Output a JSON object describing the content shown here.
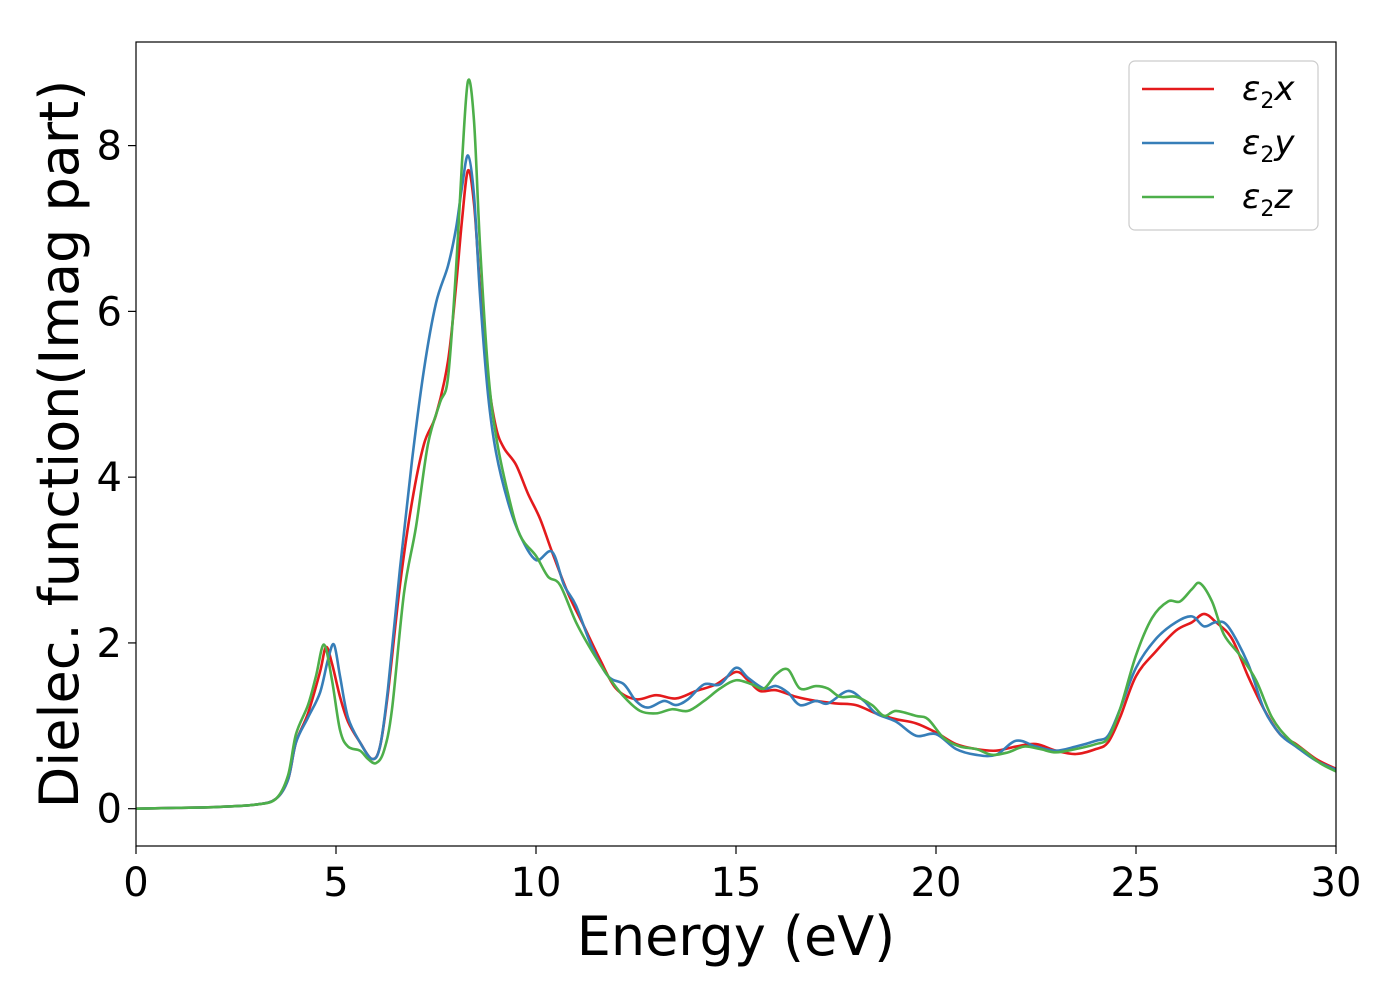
{
  "chart_data": {
    "type": "line",
    "xlabel": "Energy (eV)",
    "ylabel": "Dielec. function(Imag part)",
    "xlim": [
      0,
      30
    ],
    "ylim": [
      -0.45,
      9.25
    ],
    "xticks": [
      0,
      5,
      10,
      15,
      20,
      25,
      30
    ],
    "yticks": [
      0,
      2,
      4,
      6,
      8
    ],
    "grid": false,
    "legend_position": "top-right",
    "colors": {
      "x": "#e41a1c",
      "y": "#377eb8",
      "z": "#4daf4a"
    },
    "series": [
      {
        "name": "ε2x",
        "legend_symbol": "ε",
        "legend_sub": "2",
        "legend_suffix": "x",
        "color": "#e41a1c",
        "points": [
          [
            0,
            0
          ],
          [
            1,
            0.01
          ],
          [
            2,
            0.02
          ],
          [
            3,
            0.05
          ],
          [
            3.5,
            0.12
          ],
          [
            3.8,
            0.35
          ],
          [
            4.0,
            0.8
          ],
          [
            4.3,
            1.15
          ],
          [
            4.6,
            1.65
          ],
          [
            4.75,
            1.95
          ],
          [
            4.9,
            1.75
          ],
          [
            5.1,
            1.35
          ],
          [
            5.3,
            1.05
          ],
          [
            5.6,
            0.8
          ],
          [
            5.9,
            0.6
          ],
          [
            6.1,
            0.75
          ],
          [
            6.3,
            1.4
          ],
          [
            6.6,
            2.7
          ],
          [
            6.9,
            3.7
          ],
          [
            7.2,
            4.4
          ],
          [
            7.5,
            4.75
          ],
          [
            7.8,
            5.4
          ],
          [
            8.0,
            6.3
          ],
          [
            8.15,
            7.1
          ],
          [
            8.3,
            7.7
          ],
          [
            8.45,
            7.3
          ],
          [
            8.6,
            6.3
          ],
          [
            8.8,
            5.2
          ],
          [
            9.0,
            4.6
          ],
          [
            9.2,
            4.35
          ],
          [
            9.5,
            4.15
          ],
          [
            9.8,
            3.8
          ],
          [
            10.1,
            3.5
          ],
          [
            10.4,
            3.1
          ],
          [
            10.8,
            2.6
          ],
          [
            11.2,
            2.2
          ],
          [
            11.6,
            1.8
          ],
          [
            12.0,
            1.45
          ],
          [
            12.5,
            1.32
          ],
          [
            13.0,
            1.37
          ],
          [
            13.5,
            1.33
          ],
          [
            14.0,
            1.42
          ],
          [
            14.5,
            1.5
          ],
          [
            15.0,
            1.65
          ],
          [
            15.3,
            1.55
          ],
          [
            15.6,
            1.42
          ],
          [
            16.0,
            1.43
          ],
          [
            16.5,
            1.35
          ],
          [
            17.0,
            1.3
          ],
          [
            17.5,
            1.27
          ],
          [
            18.0,
            1.25
          ],
          [
            18.5,
            1.15
          ],
          [
            19.0,
            1.08
          ],
          [
            19.5,
            1.03
          ],
          [
            20.0,
            0.92
          ],
          [
            20.5,
            0.78
          ],
          [
            21.0,
            0.72
          ],
          [
            21.5,
            0.7
          ],
          [
            22.0,
            0.75
          ],
          [
            22.5,
            0.78
          ],
          [
            23.0,
            0.7
          ],
          [
            23.5,
            0.66
          ],
          [
            24.0,
            0.72
          ],
          [
            24.3,
            0.8
          ],
          [
            24.6,
            1.1
          ],
          [
            25.0,
            1.6
          ],
          [
            25.5,
            1.9
          ],
          [
            26.0,
            2.15
          ],
          [
            26.4,
            2.25
          ],
          [
            26.7,
            2.35
          ],
          [
            27.0,
            2.25
          ],
          [
            27.4,
            2.05
          ],
          [
            27.8,
            1.6
          ],
          [
            28.2,
            1.2
          ],
          [
            28.6,
            0.9
          ],
          [
            29.0,
            0.78
          ],
          [
            29.5,
            0.6
          ],
          [
            30.0,
            0.48
          ]
        ]
      },
      {
        "name": "ε2y",
        "legend_symbol": "ε",
        "legend_sub": "2",
        "legend_suffix": "y",
        "color": "#377eb8",
        "points": [
          [
            0,
            0
          ],
          [
            1,
            0.01
          ],
          [
            2,
            0.02
          ],
          [
            3,
            0.05
          ],
          [
            3.5,
            0.12
          ],
          [
            3.8,
            0.35
          ],
          [
            4.0,
            0.8
          ],
          [
            4.3,
            1.1
          ],
          [
            4.6,
            1.4
          ],
          [
            4.8,
            1.8
          ],
          [
            4.95,
            1.98
          ],
          [
            5.1,
            1.6
          ],
          [
            5.3,
            1.1
          ],
          [
            5.6,
            0.8
          ],
          [
            5.9,
            0.6
          ],
          [
            6.1,
            0.75
          ],
          [
            6.3,
            1.45
          ],
          [
            6.6,
            2.9
          ],
          [
            6.9,
            4.2
          ],
          [
            7.2,
            5.3
          ],
          [
            7.5,
            6.1
          ],
          [
            7.8,
            6.55
          ],
          [
            8.0,
            7.0
          ],
          [
            8.15,
            7.5
          ],
          [
            8.3,
            7.88
          ],
          [
            8.45,
            7.4
          ],
          [
            8.6,
            6.2
          ],
          [
            8.8,
            5.0
          ],
          [
            9.0,
            4.3
          ],
          [
            9.3,
            3.7
          ],
          [
            9.6,
            3.3
          ],
          [
            10.0,
            3.0
          ],
          [
            10.4,
            3.1
          ],
          [
            10.7,
            2.7
          ],
          [
            11.0,
            2.45
          ],
          [
            11.4,
            1.95
          ],
          [
            11.8,
            1.6
          ],
          [
            12.2,
            1.5
          ],
          [
            12.5,
            1.3
          ],
          [
            12.8,
            1.22
          ],
          [
            13.2,
            1.3
          ],
          [
            13.5,
            1.25
          ],
          [
            13.8,
            1.32
          ],
          [
            14.2,
            1.5
          ],
          [
            14.6,
            1.5
          ],
          [
            15.0,
            1.7
          ],
          [
            15.3,
            1.58
          ],
          [
            15.7,
            1.45
          ],
          [
            16.0,
            1.48
          ],
          [
            16.3,
            1.4
          ],
          [
            16.6,
            1.25
          ],
          [
            17.0,
            1.3
          ],
          [
            17.3,
            1.27
          ],
          [
            17.8,
            1.42
          ],
          [
            18.2,
            1.3
          ],
          [
            18.5,
            1.15
          ],
          [
            19.0,
            1.05
          ],
          [
            19.5,
            0.88
          ],
          [
            20.0,
            0.9
          ],
          [
            20.5,
            0.72
          ],
          [
            21.0,
            0.65
          ],
          [
            21.5,
            0.65
          ],
          [
            22.0,
            0.82
          ],
          [
            22.5,
            0.75
          ],
          [
            23.0,
            0.7
          ],
          [
            23.5,
            0.75
          ],
          [
            24.0,
            0.82
          ],
          [
            24.3,
            0.88
          ],
          [
            24.6,
            1.2
          ],
          [
            25.0,
            1.7
          ],
          [
            25.5,
            2.05
          ],
          [
            26.0,
            2.25
          ],
          [
            26.4,
            2.32
          ],
          [
            26.7,
            2.2
          ],
          [
            27.0,
            2.25
          ],
          [
            27.3,
            2.2
          ],
          [
            27.8,
            1.75
          ],
          [
            28.2,
            1.2
          ],
          [
            28.6,
            0.9
          ],
          [
            29.0,
            0.75
          ],
          [
            29.5,
            0.58
          ],
          [
            30.0,
            0.47
          ]
        ]
      },
      {
        "name": "ε2z",
        "legend_symbol": "ε",
        "legend_sub": "2",
        "legend_suffix": "z",
        "color": "#4daf4a",
        "points": [
          [
            0,
            0
          ],
          [
            1,
            0.01
          ],
          [
            2,
            0.02
          ],
          [
            3,
            0.05
          ],
          [
            3.5,
            0.12
          ],
          [
            3.8,
            0.4
          ],
          [
            4.0,
            0.9
          ],
          [
            4.3,
            1.25
          ],
          [
            4.5,
            1.6
          ],
          [
            4.7,
            1.98
          ],
          [
            4.9,
            1.55
          ],
          [
            5.1,
            0.95
          ],
          [
            5.3,
            0.75
          ],
          [
            5.6,
            0.7
          ],
          [
            5.8,
            0.6
          ],
          [
            6.0,
            0.55
          ],
          [
            6.2,
            0.7
          ],
          [
            6.4,
            1.2
          ],
          [
            6.7,
            2.6
          ],
          [
            7.0,
            3.4
          ],
          [
            7.3,
            4.4
          ],
          [
            7.6,
            4.9
          ],
          [
            7.8,
            5.2
          ],
          [
            8.0,
            6.5
          ],
          [
            8.15,
            7.8
          ],
          [
            8.3,
            8.78
          ],
          [
            8.45,
            8.3
          ],
          [
            8.6,
            6.8
          ],
          [
            8.8,
            5.3
          ],
          [
            9.0,
            4.5
          ],
          [
            9.3,
            3.8
          ],
          [
            9.6,
            3.3
          ],
          [
            10.0,
            3.05
          ],
          [
            10.3,
            2.8
          ],
          [
            10.6,
            2.7
          ],
          [
            11.0,
            2.25
          ],
          [
            11.4,
            1.9
          ],
          [
            11.8,
            1.6
          ],
          [
            12.2,
            1.35
          ],
          [
            12.6,
            1.18
          ],
          [
            13.0,
            1.15
          ],
          [
            13.4,
            1.2
          ],
          [
            13.8,
            1.18
          ],
          [
            14.2,
            1.3
          ],
          [
            14.6,
            1.45
          ],
          [
            15.0,
            1.55
          ],
          [
            15.4,
            1.5
          ],
          [
            15.7,
            1.45
          ],
          [
            16.0,
            1.62
          ],
          [
            16.3,
            1.68
          ],
          [
            16.6,
            1.45
          ],
          [
            17.0,
            1.48
          ],
          [
            17.3,
            1.45
          ],
          [
            17.6,
            1.35
          ],
          [
            18.0,
            1.35
          ],
          [
            18.4,
            1.25
          ],
          [
            18.7,
            1.12
          ],
          [
            19.0,
            1.18
          ],
          [
            19.5,
            1.12
          ],
          [
            19.8,
            1.08
          ],
          [
            20.2,
            0.85
          ],
          [
            20.6,
            0.75
          ],
          [
            21.0,
            0.72
          ],
          [
            21.4,
            0.65
          ],
          [
            21.8,
            0.68
          ],
          [
            22.2,
            0.75
          ],
          [
            22.6,
            0.72
          ],
          [
            23.0,
            0.68
          ],
          [
            23.5,
            0.72
          ],
          [
            24.0,
            0.78
          ],
          [
            24.3,
            0.85
          ],
          [
            24.6,
            1.2
          ],
          [
            25.0,
            1.85
          ],
          [
            25.4,
            2.3
          ],
          [
            25.8,
            2.5
          ],
          [
            26.1,
            2.5
          ],
          [
            26.4,
            2.65
          ],
          [
            26.6,
            2.72
          ],
          [
            26.9,
            2.5
          ],
          [
            27.2,
            2.1
          ],
          [
            27.6,
            1.85
          ],
          [
            28.0,
            1.55
          ],
          [
            28.4,
            1.1
          ],
          [
            28.8,
            0.85
          ],
          [
            29.2,
            0.7
          ],
          [
            29.6,
            0.55
          ],
          [
            30.0,
            0.45
          ]
        ]
      }
    ]
  }
}
